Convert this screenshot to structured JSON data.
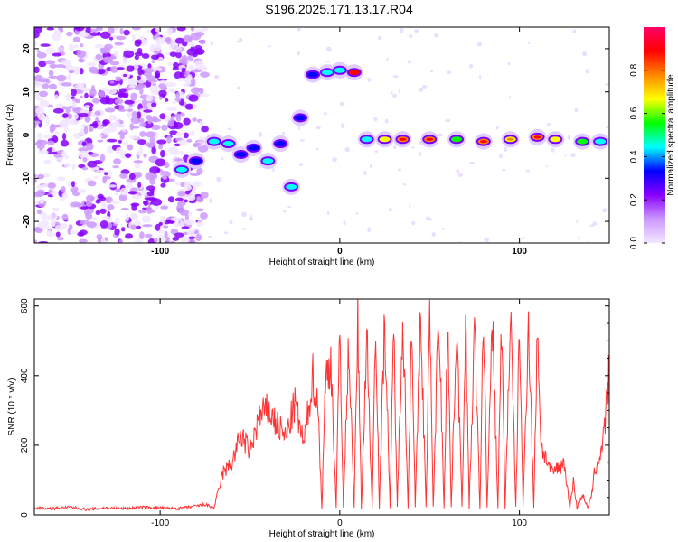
{
  "title": "S196.2025.171.13.17.R04",
  "chart_data": [
    {
      "type": "heatmap",
      "xlabel": "Height of straight line (km)",
      "ylabel": "Frequency (Hz)",
      "xlim": [
        -170,
        150
      ],
      "ylim": [
        -25,
        25
      ],
      "xticks": [
        -100,
        0,
        100
      ],
      "yticks": [
        -20,
        -10,
        0,
        10,
        20
      ],
      "colorbar": {
        "label": "Normalized spectral amplitude",
        "range": [
          0,
          1
        ],
        "ticks": [
          "0.0",
          "0.2",
          "0.4",
          "0.6",
          "0.8"
        ],
        "colors": [
          "#f2e6ff",
          "#cc99ff",
          "#8800ff",
          "#0000ff",
          "#00ffff",
          "#00ff00",
          "#ffff00",
          "#ff8800",
          "#ff0000",
          "#ff0066"
        ]
      },
      "ridge": [
        {
          "x": -88,
          "y": -8,
          "amp": 0.45
        },
        {
          "x": -80,
          "y": -6,
          "amp": 0.4
        },
        {
          "x": -70,
          "y": -1.5,
          "amp": 0.45
        },
        {
          "x": -62,
          "y": -2,
          "amp": 0.45
        },
        {
          "x": -55,
          "y": -4.5,
          "amp": 0.4
        },
        {
          "x": -48,
          "y": -3,
          "amp": 0.4
        },
        {
          "x": -40,
          "y": -6,
          "amp": 0.45
        },
        {
          "x": -33,
          "y": -2,
          "amp": 0.4
        },
        {
          "x": -27,
          "y": -12,
          "amp": 0.45
        },
        {
          "x": -22,
          "y": 4,
          "amp": 0.35
        },
        {
          "x": -15,
          "y": 14,
          "amp": 0.35
        },
        {
          "x": -7,
          "y": 14.5,
          "amp": 0.55
        },
        {
          "x": 0,
          "y": 15,
          "amp": 0.5
        },
        {
          "x": 8,
          "y": 14.5,
          "amp": 0.9
        },
        {
          "x": 15,
          "y": -1,
          "amp": 0.5
        },
        {
          "x": 25,
          "y": -1,
          "amp": 0.7
        },
        {
          "x": 35,
          "y": -1,
          "amp": 0.8
        },
        {
          "x": 50,
          "y": -1,
          "amp": 0.85
        },
        {
          "x": 65,
          "y": -1,
          "amp": 0.65
        },
        {
          "x": 80,
          "y": -1.5,
          "amp": 0.85
        },
        {
          "x": 95,
          "y": -1,
          "amp": 0.75
        },
        {
          "x": 110,
          "y": -0.5,
          "amp": 0.8
        },
        {
          "x": 120,
          "y": -1,
          "amp": 0.7
        },
        {
          "x": 135,
          "y": -1.5,
          "amp": 0.6
        },
        {
          "x": 145,
          "y": -1.5,
          "amp": 0.55
        }
      ]
    },
    {
      "type": "line",
      "xlabel": "Height of straight line (km)",
      "ylabel": "SNR (10 * v/v)",
      "xlim": [
        -170,
        150
      ],
      "ylim": [
        0,
        620
      ],
      "xticks": [
        -100,
        0,
        100
      ],
      "yticks": [
        0,
        200,
        400,
        600
      ],
      "color": "#ff3333",
      "series": [
        {
          "x": [
            -170,
            -160,
            -150,
            -140,
            -130,
            -120,
            -110,
            -100,
            -90,
            -80,
            -75,
            -70,
            -68,
            -65,
            -60,
            -55,
            -50,
            -45,
            -40,
            -35,
            -30,
            -25,
            -20,
            -15,
            -12,
            -10,
            -8,
            -5,
            -2,
            0,
            2,
            5,
            8,
            10,
            12,
            15,
            18,
            20,
            22,
            25,
            28,
            30,
            32,
            35,
            38,
            40,
            42,
            45,
            48,
            50,
            52,
            55,
            58,
            60,
            62,
            65,
            68,
            70,
            72,
            75,
            78,
            80,
            82,
            85,
            88,
            90,
            92,
            95,
            98,
            100,
            102,
            105,
            108,
            110,
            112,
            115,
            118,
            120,
            125,
            128,
            130,
            132,
            135,
            138,
            140,
            142,
            145,
            148,
            150
          ],
          "y": [
            20,
            18,
            22,
            15,
            20,
            18,
            22,
            20,
            18,
            25,
            30,
            20,
            60,
            120,
            150,
            230,
            180,
            280,
            300,
            260,
            220,
            320,
            200,
            400,
            300,
            20,
            380,
            450,
            20,
            550,
            20,
            500,
            20,
            560,
            20,
            520,
            20,
            580,
            20,
            570,
            20,
            540,
            20,
            600,
            20,
            580,
            20,
            570,
            20,
            580,
            20,
            600,
            20,
            580,
            20,
            560,
            20,
            570,
            20,
            530,
            20,
            580,
            20,
            560,
            20,
            560,
            20,
            580,
            20,
            550,
            20,
            560,
            20,
            560,
            200,
            160,
            120,
            130,
            150,
            20,
            100,
            20,
            60,
            20,
            50,
            130,
            170,
            280,
            420
          ]
        }
      ]
    }
  ]
}
